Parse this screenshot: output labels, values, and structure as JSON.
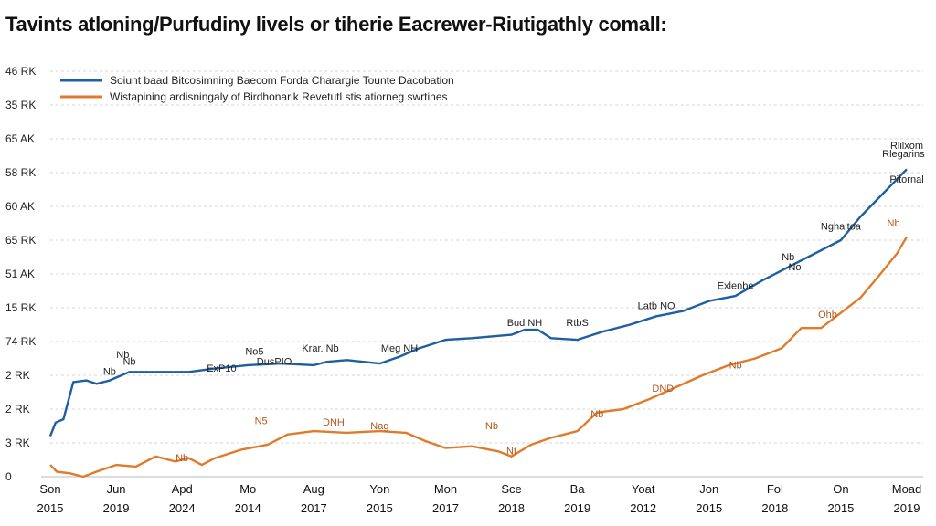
{
  "chart_data": {
    "type": "line",
    "title": "Tavints atloning/Purfudiny livels or tiherie Eacrewer-Riutigathly comall:",
    "xlabel": "",
    "ylabel": "",
    "y_tick_labels": [
      "0",
      "3 RK",
      "2 RK",
      "2 RK",
      "74 RK",
      "15 RK",
      "51 AK",
      "65 RK",
      "60 AK",
      "58 RK",
      "65 AK",
      "35 RK",
      "46 RK"
    ],
    "x_tick_labels": [
      {
        "top": "Son",
        "bottom": "2015"
      },
      {
        "top": "Jun",
        "bottom": "2019"
      },
      {
        "top": "Apd",
        "bottom": "2024"
      },
      {
        "top": "Mo",
        "bottom": "2014"
      },
      {
        "top": "Aug",
        "bottom": "2017"
      },
      {
        "top": "Yon",
        "bottom": "2015"
      },
      {
        "top": "Mon",
        "bottom": "2017"
      },
      {
        "top": "Sce",
        "bottom": "2018"
      },
      {
        "top": "Ba",
        "bottom": "2019"
      },
      {
        "top": "Yoat",
        "bottom": "2012"
      },
      {
        "top": "Jon",
        "bottom": "2015"
      },
      {
        "top": "Fol",
        "bottom": "2018"
      },
      {
        "top": "On",
        "bottom": "2015"
      },
      {
        "top": "Moad",
        "bottom": "2019"
      }
    ],
    "legend_position": "top-left",
    "grid": true,
    "ylim": [
      0,
      12
    ],
    "xlim": [
      0,
      13
    ],
    "series": [
      {
        "name": "Soiunt baad Bitcosimning Baecom Forda Charargie Tounte Dacobation",
        "color": "#1f5fa0",
        "points": [
          [
            0.0,
            1.2
          ],
          [
            0.08,
            1.6
          ],
          [
            0.2,
            1.7
          ],
          [
            0.35,
            2.8
          ],
          [
            0.55,
            2.85
          ],
          [
            0.7,
            2.75
          ],
          [
            0.9,
            2.85
          ],
          [
            1.2,
            3.1
          ],
          [
            1.6,
            3.1
          ],
          [
            2.1,
            3.1
          ],
          [
            2.5,
            3.2
          ],
          [
            3.0,
            3.3
          ],
          [
            3.5,
            3.35
          ],
          [
            4.0,
            3.3
          ],
          [
            4.2,
            3.4
          ],
          [
            4.5,
            3.45
          ],
          [
            5.0,
            3.35
          ],
          [
            5.3,
            3.55
          ],
          [
            5.6,
            3.8
          ],
          [
            6.0,
            4.05
          ],
          [
            6.4,
            4.1
          ],
          [
            7.0,
            4.2
          ],
          [
            7.2,
            4.35
          ],
          [
            7.4,
            4.35
          ],
          [
            7.6,
            4.1
          ],
          [
            8.0,
            4.05
          ],
          [
            8.4,
            4.3
          ],
          [
            8.8,
            4.5
          ],
          [
            9.2,
            4.75
          ],
          [
            9.6,
            4.9
          ],
          [
            10.0,
            5.2
          ],
          [
            10.4,
            5.35
          ],
          [
            10.8,
            5.8
          ],
          [
            11.2,
            6.2
          ],
          [
            11.6,
            6.6
          ],
          [
            12.0,
            7.0
          ],
          [
            12.3,
            7.7
          ],
          [
            12.6,
            8.3
          ],
          [
            12.85,
            8.8
          ],
          [
            13.0,
            9.1
          ]
        ]
      },
      {
        "name": "Wistapining ardisningaly of Birdhonarik Revetutl stis atiorneg swrtines",
        "color": "#e07b2b",
        "points": [
          [
            0.0,
            0.35
          ],
          [
            0.1,
            0.15
          ],
          [
            0.3,
            0.1
          ],
          [
            0.5,
            0.0
          ],
          [
            0.7,
            0.15
          ],
          [
            1.0,
            0.35
          ],
          [
            1.3,
            0.3
          ],
          [
            1.6,
            0.6
          ],
          [
            1.9,
            0.45
          ],
          [
            2.1,
            0.55
          ],
          [
            2.3,
            0.35
          ],
          [
            2.5,
            0.55
          ],
          [
            2.9,
            0.8
          ],
          [
            3.3,
            0.95
          ],
          [
            3.6,
            1.25
          ],
          [
            4.0,
            1.35
          ],
          [
            4.5,
            1.3
          ],
          [
            5.0,
            1.35
          ],
          [
            5.4,
            1.3
          ],
          [
            5.7,
            1.05
          ],
          [
            6.0,
            0.85
          ],
          [
            6.4,
            0.9
          ],
          [
            6.8,
            0.75
          ],
          [
            7.0,
            0.6
          ],
          [
            7.3,
            0.95
          ],
          [
            7.6,
            1.15
          ],
          [
            8.0,
            1.35
          ],
          [
            8.3,
            1.9
          ],
          [
            8.7,
            2.0
          ],
          [
            9.1,
            2.3
          ],
          [
            9.5,
            2.65
          ],
          [
            9.9,
            3.0
          ],
          [
            10.3,
            3.3
          ],
          [
            10.7,
            3.5
          ],
          [
            11.1,
            3.8
          ],
          [
            11.4,
            4.4
          ],
          [
            11.7,
            4.4
          ],
          [
            12.0,
            4.85
          ],
          [
            12.3,
            5.3
          ],
          [
            12.6,
            6.0
          ],
          [
            12.85,
            6.6
          ],
          [
            13.0,
            7.1
          ]
        ]
      }
    ],
    "annotations": [
      {
        "text": "Nb",
        "x": 0.9,
        "y": 2.9,
        "series": 0
      },
      {
        "text": "Nb",
        "x": 1.2,
        "y": 3.2,
        "series": 0
      },
      {
        "text": "Nb",
        "x": 1.1,
        "y": 3.4,
        "series": 0
      },
      {
        "text": "ExP10",
        "x": 2.6,
        "y": 3.0,
        "series": 0
      },
      {
        "text": "No5",
        "x": 3.1,
        "y": 3.5,
        "series": 0
      },
      {
        "text": "DusPIO",
        "x": 3.4,
        "y": 3.2,
        "series": 0
      },
      {
        "text": "Krar. Nb",
        "x": 4.1,
        "y": 3.6,
        "series": 0
      },
      {
        "text": "Meg NH",
        "x": 5.3,
        "y": 3.6,
        "series": 0
      },
      {
        "text": "Bud NH",
        "x": 7.2,
        "y": 4.35,
        "series": 0
      },
      {
        "text": "RtbS",
        "x": 8.0,
        "y": 4.35,
        "series": 0
      },
      {
        "text": "Latb NO",
        "x": 9.2,
        "y": 4.85,
        "series": 0
      },
      {
        "text": "Exlenbe",
        "x": 10.4,
        "y": 5.45,
        "series": 0
      },
      {
        "text": "Nb",
        "x": 11.2,
        "y": 6.3,
        "series": 0
      },
      {
        "text": "No",
        "x": 11.3,
        "y": 6.0,
        "series": 0
      },
      {
        "text": "Nghaltoa",
        "x": 12.0,
        "y": 7.2,
        "series": 0
      },
      {
        "text": "Pitornal",
        "x": 13.0,
        "y": 8.6,
        "series": 0
      },
      {
        "text": "Rlilxom",
        "x": 13.0,
        "y": 9.6,
        "series": 0
      },
      {
        "text": "Rlegarins",
        "x": 12.95,
        "y": 9.35,
        "series": 0
      },
      {
        "text": "Nb",
        "x": 2.0,
        "y": 0.35,
        "series": 1
      },
      {
        "text": "N5",
        "x": 3.2,
        "y": 1.45,
        "series": 1
      },
      {
        "text": "DNH",
        "x": 4.3,
        "y": 1.4,
        "series": 1
      },
      {
        "text": "Nag",
        "x": 5.0,
        "y": 1.3,
        "series": 1
      },
      {
        "text": "Nb",
        "x": 6.7,
        "y": 1.3,
        "series": 1
      },
      {
        "text": "Nt",
        "x": 7.0,
        "y": 0.55,
        "series": 1
      },
      {
        "text": "Nb",
        "x": 8.3,
        "y": 1.65,
        "series": 1
      },
      {
        "text": "DND",
        "x": 9.3,
        "y": 2.4,
        "series": 1
      },
      {
        "text": "Nb",
        "x": 10.4,
        "y": 3.1,
        "series": 1
      },
      {
        "text": "Ohb",
        "x": 11.8,
        "y": 4.6,
        "series": 1
      },
      {
        "text": "Nb",
        "x": 12.8,
        "y": 7.3,
        "series": 1
      }
    ]
  }
}
